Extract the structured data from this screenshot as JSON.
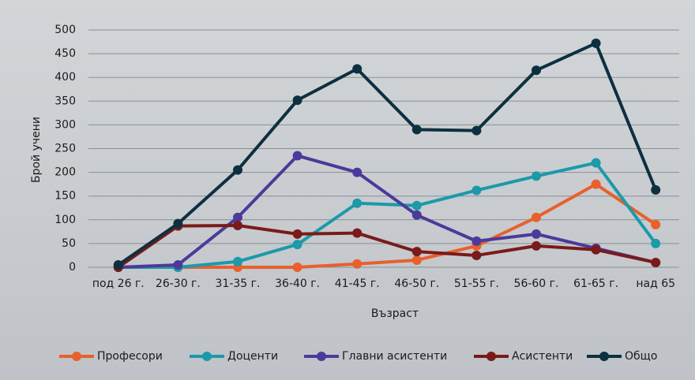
{
  "chart_data": {
    "type": "line",
    "xlabel": "Възраст",
    "ylabel": "Брой учени",
    "categories": [
      "под 26 г.",
      "26-30 г.",
      "31-35 г.",
      "36-40 г.",
      "41-45 г.",
      "46-50 г.",
      "51-55 г.",
      "56-60 г.",
      "61-65 г.",
      "над 65"
    ],
    "series": [
      {
        "name": "Професори",
        "color": "#e8602c",
        "values": [
          0,
          0,
          0,
          0,
          7,
          15,
          45,
          105,
          175,
          90
        ]
      },
      {
        "name": "Доценти",
        "color": "#1b9aaa",
        "values": [
          0,
          0,
          12,
          48,
          135,
          130,
          162,
          192,
          220,
          50
        ]
      },
      {
        "name": "Главни асистенти",
        "color": "#4b3a9a",
        "values": [
          0,
          5,
          105,
          235,
          200,
          110,
          55,
          70,
          40,
          10
        ]
      },
      {
        "name": "Асистенти",
        "color": "#7a1a1a",
        "values": [
          0,
          87,
          88,
          70,
          72,
          33,
          25,
          45,
          37,
          10
        ]
      },
      {
        "name": "Общо",
        "color": "#0d3040",
        "values": [
          5,
          92,
          205,
          352,
          418,
          290,
          288,
          415,
          472,
          163
        ]
      }
    ],
    "ylim": [
      0,
      500
    ],
    "yticks": [
      0,
      50,
      100,
      150,
      200,
      250,
      300,
      350,
      400,
      450,
      500
    ],
    "grid": true,
    "legend": "bottom"
  }
}
